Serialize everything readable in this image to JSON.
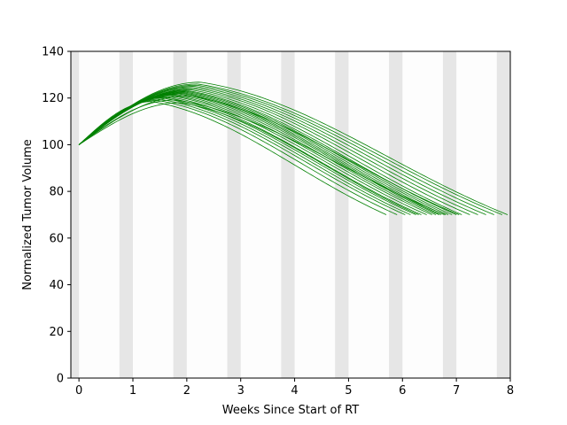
{
  "chart_data": {
    "type": "line",
    "title": "",
    "xlabel": "Weeks Since Start of RT",
    "ylabel": "Normalized Tumor Volume",
    "xlim": [
      -0.15,
      8.0
    ],
    "ylim": [
      0,
      140
    ],
    "xticks": [
      0,
      1,
      2,
      3,
      4,
      5,
      6,
      7,
      8
    ],
    "yticks": [
      0,
      20,
      40,
      60,
      80,
      100,
      120,
      140
    ],
    "grid": false,
    "legend": "none",
    "line_color": "#008000",
    "band_color": "#e6e6e6",
    "weekend_bands": [
      [
        -0.15,
        0.0
      ],
      [
        0.75,
        1.0
      ],
      [
        1.75,
        2.0
      ],
      [
        2.75,
        3.0
      ],
      [
        3.75,
        4.0
      ],
      [
        4.75,
        5.0
      ],
      [
        5.75,
        6.0
      ],
      [
        6.75,
        7.0
      ],
      [
        7.75,
        8.0
      ]
    ],
    "series_model": "piecewise smooth decline from 100 to 70 with early growth peak",
    "series": [
      {
        "peak_x": 1.35,
        "peak_y": 118.5,
        "end_x": 5.7
      },
      {
        "peak_x": 1.45,
        "peak_y": 119.0,
        "end_x": 5.9
      },
      {
        "peak_x": 1.5,
        "peak_y": 119.5,
        "end_x": 6.05
      },
      {
        "peak_x": 1.55,
        "peak_y": 120.0,
        "end_x": 6.15
      },
      {
        "peak_x": 1.6,
        "peak_y": 120.3,
        "end_x": 6.25
      },
      {
        "peak_x": 1.65,
        "peak_y": 120.6,
        "end_x": 6.35
      },
      {
        "peak_x": 1.7,
        "peak_y": 121.0,
        "end_x": 6.45
      },
      {
        "peak_x": 1.75,
        "peak_y": 121.2,
        "end_x": 6.55
      },
      {
        "peak_x": 1.8,
        "peak_y": 121.5,
        "end_x": 6.62
      },
      {
        "peak_x": 1.85,
        "peak_y": 121.8,
        "end_x": 6.68
      },
      {
        "peak_x": 1.9,
        "peak_y": 122.0,
        "end_x": 6.72
      },
      {
        "peak_x": 1.92,
        "peak_y": 122.3,
        "end_x": 6.78
      },
      {
        "peak_x": 1.95,
        "peak_y": 122.6,
        "end_x": 6.85
      },
      {
        "peak_x": 1.98,
        "peak_y": 122.9,
        "end_x": 6.92
      },
      {
        "peak_x": 2.0,
        "peak_y": 123.2,
        "end_x": 7.0
      },
      {
        "peak_x": 2.05,
        "peak_y": 123.6,
        "end_x": 7.1
      },
      {
        "peak_x": 2.1,
        "peak_y": 124.0,
        "end_x": 7.25
      },
      {
        "peak_x": 2.12,
        "peak_y": 124.5,
        "end_x": 7.4
      },
      {
        "peak_x": 2.15,
        "peak_y": 125.0,
        "end_x": 7.55
      },
      {
        "peak_x": 2.18,
        "peak_y": 125.5,
        "end_x": 7.7
      },
      {
        "peak_x": 2.2,
        "peak_y": 126.0,
        "end_x": 7.85
      },
      {
        "peak_x": 2.25,
        "peak_y": 126.8,
        "end_x": 7.95
      },
      {
        "peak_x": 1.88,
        "peak_y": 118.0,
        "end_x": 6.3
      },
      {
        "peak_x": 1.78,
        "peak_y": 119.2,
        "end_x": 6.8
      },
      {
        "peak_x": 2.02,
        "peak_y": 121.0,
        "end_x": 7.05
      }
    ]
  }
}
